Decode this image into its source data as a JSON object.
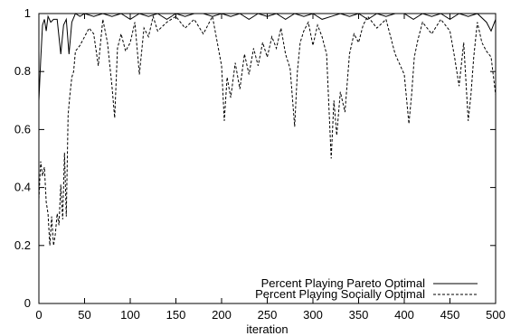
{
  "chart_data": {
    "type": "line",
    "xlabel": "iteration",
    "ylabel": "",
    "xlim": [
      0,
      500
    ],
    "ylim": [
      0,
      1
    ],
    "xticks": [
      "0",
      "50",
      "100",
      "150",
      "200",
      "250",
      "300",
      "350",
      "400",
      "450",
      "500"
    ],
    "yticks": [
      "0",
      "0.2",
      "0.4",
      "0.6",
      "0.8",
      "1"
    ],
    "grid": false,
    "legend_position": "bottom-right",
    "series": [
      {
        "name": "Percent Playing Pareto Optimal",
        "style": "solid",
        "x": [
          0,
          2,
          4,
          6,
          8,
          10,
          13,
          16,
          20,
          24,
          27,
          30,
          33,
          36,
          40,
          45,
          50,
          60,
          70,
          80,
          90,
          100,
          110,
          120,
          130,
          140,
          150,
          160,
          170,
          180,
          190,
          200,
          210,
          220,
          230,
          240,
          250,
          260,
          270,
          280,
          290,
          300,
          310,
          320,
          330,
          340,
          350,
          360,
          370,
          380,
          390,
          400,
          410,
          420,
          430,
          440,
          450,
          460,
          470,
          480,
          490,
          495,
          500
        ],
        "values": [
          0.7,
          0.84,
          0.96,
          0.98,
          0.94,
          0.99,
          0.97,
          0.98,
          0.98,
          0.86,
          0.96,
          0.98,
          0.86,
          0.97,
          1.0,
          0.99,
          1.0,
          0.99,
          1.0,
          0.99,
          1.0,
          0.98,
          1.0,
          0.99,
          1.0,
          0.98,
          1.0,
          0.99,
          1.0,
          1.0,
          0.99,
          1.0,
          0.99,
          1.0,
          0.98,
          1.0,
          0.99,
          1.0,
          0.98,
          1.0,
          0.99,
          1.0,
          0.98,
          0.99,
          1.0,
          0.99,
          1.0,
          0.98,
          1.0,
          0.99,
          1.0,
          1.0,
          0.98,
          1.0,
          0.99,
          1.0,
          0.98,
          1.0,
          0.99,
          1.0,
          0.97,
          0.94,
          0.98
        ]
      },
      {
        "name": "Percent Playing Socially Optimal",
        "style": "dashed",
        "x": [
          0,
          2,
          4,
          6,
          8,
          10,
          12,
          14,
          16,
          18,
          20,
          22,
          24,
          26,
          28,
          30,
          32,
          34,
          36,
          38,
          40,
          45,
          50,
          55,
          60,
          65,
          70,
          75,
          80,
          83,
          86,
          90,
          95,
          100,
          105,
          110,
          115,
          120,
          125,
          130,
          140,
          150,
          160,
          170,
          180,
          190,
          200,
          203,
          206,
          210,
          215,
          220,
          225,
          230,
          235,
          240,
          245,
          250,
          255,
          260,
          265,
          270,
          275,
          280,
          283,
          286,
          290,
          295,
          300,
          305,
          310,
          315,
          320,
          323,
          326,
          330,
          335,
          340,
          345,
          350,
          355,
          360,
          370,
          380,
          390,
          400,
          405,
          408,
          411,
          415,
          420,
          430,
          440,
          450,
          455,
          460,
          465,
          470,
          473,
          476,
          480,
          485,
          490,
          495,
          500
        ],
        "values": [
          0.36,
          0.49,
          0.44,
          0.47,
          0.35,
          0.31,
          0.2,
          0.3,
          0.2,
          0.24,
          0.31,
          0.27,
          0.41,
          0.29,
          0.52,
          0.3,
          0.65,
          0.72,
          0.78,
          0.8,
          0.87,
          0.89,
          0.92,
          0.95,
          0.93,
          0.82,
          0.98,
          0.9,
          0.75,
          0.64,
          0.88,
          0.93,
          0.87,
          0.9,
          0.97,
          0.79,
          0.95,
          0.92,
          0.99,
          0.94,
          0.97,
          0.99,
          0.95,
          0.98,
          0.93,
          0.99,
          0.82,
          0.63,
          0.78,
          0.71,
          0.83,
          0.74,
          0.86,
          0.79,
          0.88,
          0.82,
          0.9,
          0.85,
          0.92,
          0.88,
          0.95,
          0.86,
          0.81,
          0.61,
          0.8,
          0.9,
          0.94,
          0.97,
          0.89,
          0.96,
          0.92,
          0.86,
          0.5,
          0.7,
          0.58,
          0.73,
          0.66,
          0.86,
          0.93,
          0.9,
          0.96,
          0.99,
          0.95,
          0.98,
          0.86,
          0.79,
          0.62,
          0.72,
          0.85,
          0.91,
          0.97,
          0.93,
          0.98,
          0.94,
          0.85,
          0.75,
          0.9,
          0.63,
          0.72,
          0.85,
          0.97,
          0.9,
          0.87,
          0.85,
          0.72
        ]
      }
    ]
  }
}
